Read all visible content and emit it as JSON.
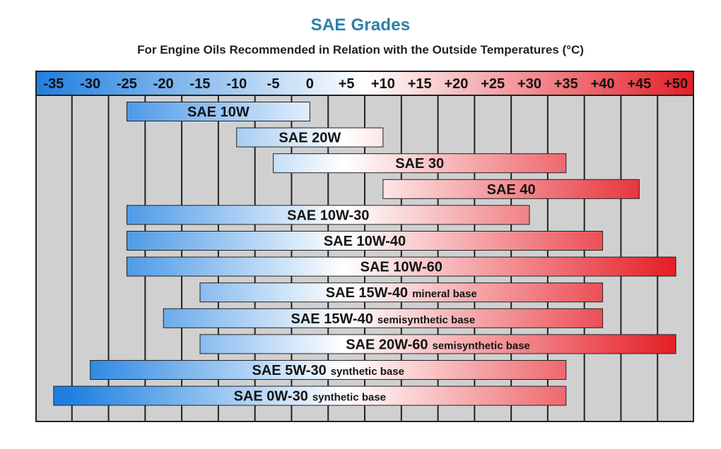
{
  "title": "SAE Grades",
  "subtitle": "For Engine Oils Recommended in Relation with the Outside Temperatures (°C)",
  "colors": {
    "cold": "#1e7fe0",
    "mid": "#ffffff",
    "hot": "#e51e26",
    "grid_bg": "#d0d0d0",
    "grid_line": "#222222"
  },
  "chart_data": {
    "type": "bar",
    "orientation": "horizontal-range",
    "x_ticks": [
      "-35",
      "-30",
      "-25",
      "-20",
      "-15",
      "-10",
      "-5",
      "0",
      "+5",
      "+10",
      "+15",
      "+20",
      "+25",
      "+30",
      "+35",
      "+40",
      "+45",
      "+50"
    ],
    "xlim": [
      -37.5,
      52.5
    ],
    "grades": [
      {
        "name": "SAE 10W",
        "note": "",
        "min": -25,
        "max": 0
      },
      {
        "name": "SAE 20W",
        "note": "",
        "min": -10,
        "max": 10
      },
      {
        "name": "SAE 30",
        "note": "",
        "min": -5,
        "max": 35
      },
      {
        "name": "SAE 40",
        "note": "",
        "min": 10,
        "max": 45
      },
      {
        "name": "SAE 10W-30",
        "note": "",
        "min": -25,
        "max": 30
      },
      {
        "name": "SAE 10W-40",
        "note": "",
        "min": -25,
        "max": 40
      },
      {
        "name": "SAE 10W-60",
        "note": "",
        "min": -25,
        "max": 50
      },
      {
        "name": "SAE 15W-40",
        "note": "mineral base",
        "min": -15,
        "max": 40
      },
      {
        "name": "SAE 15W-40",
        "note": "semisynthetic base",
        "min": -20,
        "max": 40
      },
      {
        "name": "SAE 20W-60",
        "note": "semisynthetic base",
        "min": -15,
        "max": 50
      },
      {
        "name": "SAE 5W-30",
        "note": "synthetic base",
        "min": -30,
        "max": 35
      },
      {
        "name": "SAE 0W-30",
        "note": "synthetic base",
        "min": -35,
        "max": 35
      }
    ]
  }
}
